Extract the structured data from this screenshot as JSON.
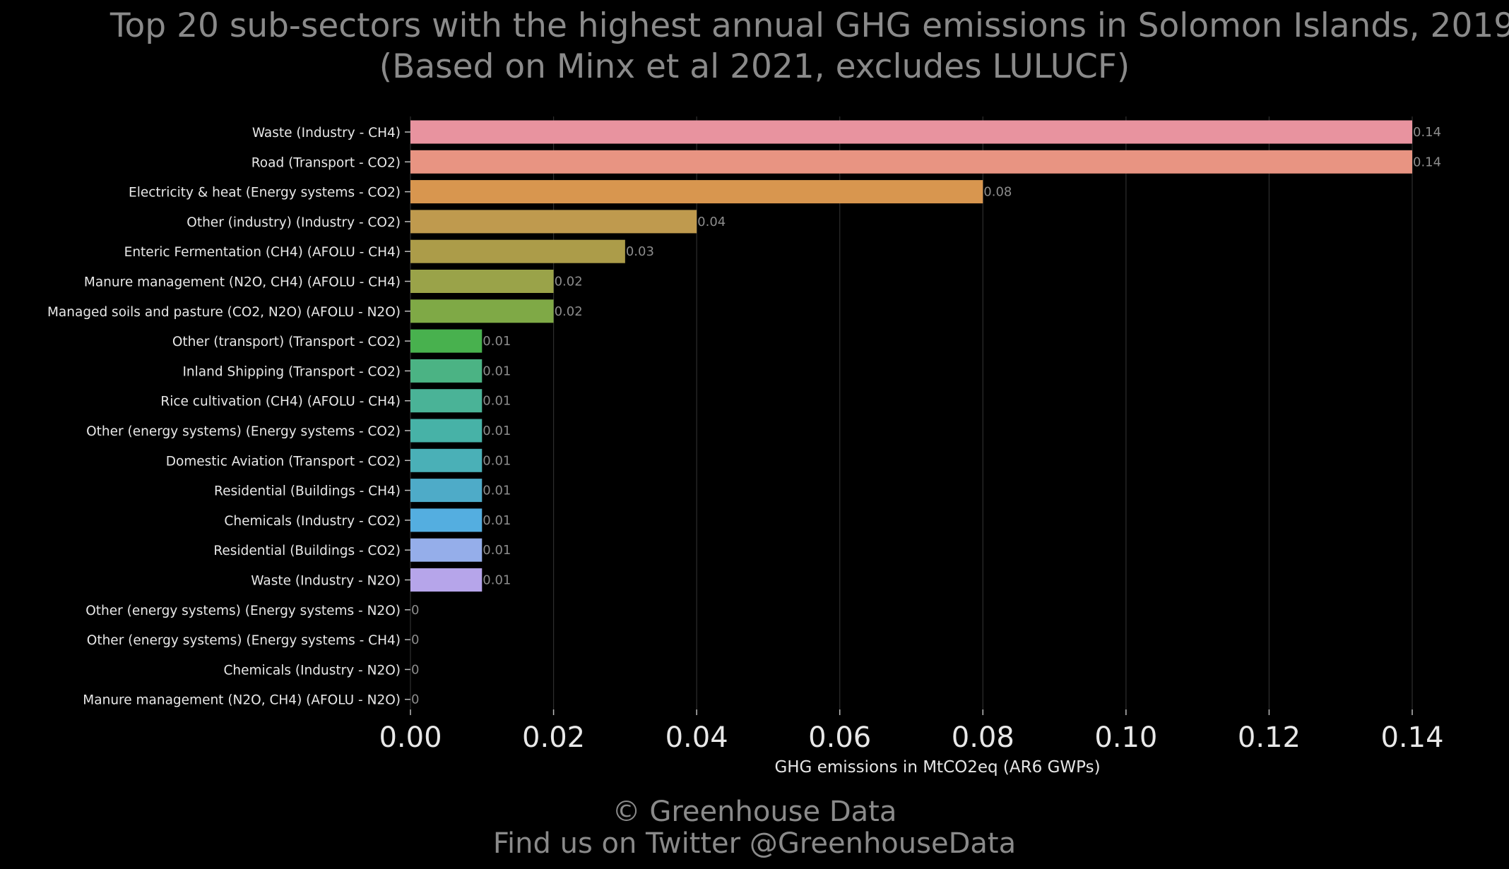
{
  "title_line1": "Top 20 sub-sectors with the highest annual GHG emissions in Solomon Islands, 2019",
  "title_line2": "(Based on Minx et al 2021, excludes LULUCF)",
  "credit_line1": "© Greenhouse Data",
  "credit_line2": "Find us on Twitter @GreenhouseData",
  "chart_data": {
    "type": "bar",
    "orientation": "horizontal",
    "title": "Top 20 sub-sectors with the highest annual GHG emissions in Solomon Islands, 2019 (Based on Minx et al 2021, excludes LULUCF)",
    "xlabel": "GHG emissions in MtCO2eq (AR6 GWPs)",
    "ylabel": "",
    "xlim": [
      0,
      0.14
    ],
    "xticks": [
      "0.00",
      "0.02",
      "0.04",
      "0.06",
      "0.08",
      "0.10",
      "0.12",
      "0.14"
    ],
    "grid": "vertical",
    "categories": [
      "Waste (Industry - CH4)",
      "Road (Transport - CO2)",
      "Electricity & heat (Energy systems - CO2)",
      "Other (industry) (Industry - CO2)",
      "Enteric Fermentation (CH4) (AFOLU - CH4)",
      "Manure management (N2O, CH4) (AFOLU - CH4)",
      "Managed soils and pasture (CO2, N2O) (AFOLU - N2O)",
      "Other (transport) (Transport - CO2)",
      "Inland Shipping (Transport - CO2)",
      "Rice cultivation (CH4) (AFOLU - CH4)",
      "Other (energy systems) (Energy systems - CO2)",
      "Domestic Aviation (Transport - CO2)",
      "Residential (Buildings - CH4)",
      "Chemicals (Industry - CO2)",
      "Residential (Buildings - CO2)",
      "Waste (Industry - N2O)",
      "Other (energy systems) (Energy systems - N2O)",
      "Other (energy systems) (Energy systems - CH4)",
      "Chemicals (Industry - N2O)",
      "Manure management (N2O, CH4) (AFOLU - N2O)"
    ],
    "values": [
      0.14,
      0.14,
      0.08,
      0.04,
      0.03,
      0.02,
      0.02,
      0.01,
      0.01,
      0.01,
      0.01,
      0.01,
      0.01,
      0.01,
      0.01,
      0.01,
      0,
      0,
      0,
      0
    ],
    "value_labels": [
      "0.14",
      "0.14",
      "0.08",
      "0.04",
      "0.03",
      "0.02",
      "0.02",
      "0.01",
      "0.01",
      "0.01",
      "0.01",
      "0.01",
      "0.01",
      "0.01",
      "0.01",
      "0.01",
      "0",
      "0",
      "0",
      "0"
    ],
    "colors": [
      "#e8939f",
      "#e89482",
      "#d8964f",
      "#bf9a4e",
      "#ac9c49",
      "#9aa349",
      "#7fa946",
      "#48b14e",
      "#4bb384",
      "#4ab397",
      "#47b2a7",
      "#4ab0b7",
      "#4eabc8",
      "#54aee0",
      "#95aeea",
      "#b6a5ea",
      "#d89ce6",
      "#e395d6",
      "#e897c4",
      "#e898b1"
    ]
  }
}
